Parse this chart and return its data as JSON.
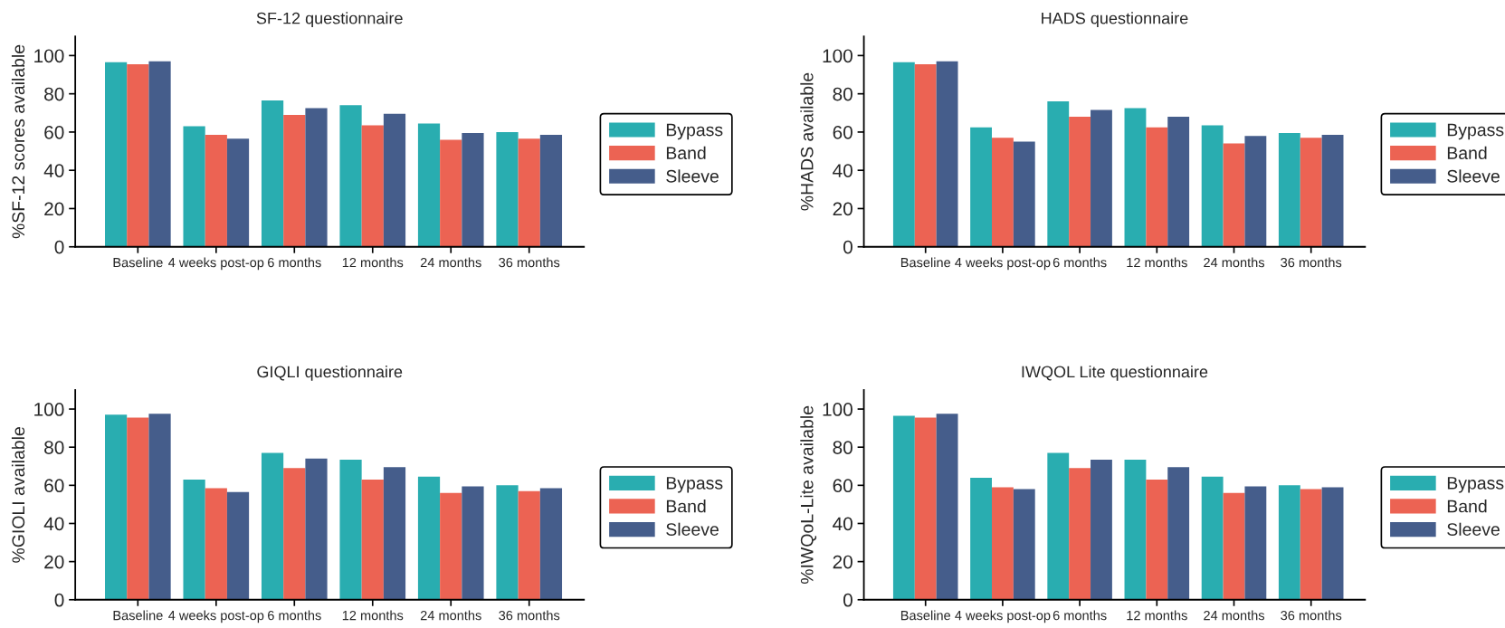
{
  "chart_data": [
    {
      "type": "bar",
      "title": "SF-12 questionnaire",
      "ylabel": "%SF-12 scores available",
      "categories": [
        "Baseline",
        "4 weeks post-op",
        "6 months",
        "12 months",
        "24 months",
        "36 months"
      ],
      "series": [
        {
          "name": "Bypass",
          "color": "#29adb0",
          "values": [
            96.5,
            63,
            76.5,
            74,
            64.5,
            60
          ]
        },
        {
          "name": "Band",
          "color": "#ec6353",
          "values": [
            95.5,
            58.5,
            69,
            63.5,
            56,
            56.5
          ]
        },
        {
          "name": "Sleeve",
          "color": "#455d8b",
          "values": [
            97,
            56.5,
            72.5,
            69.5,
            59.5,
            58.5
          ]
        }
      ],
      "ylim": [
        0,
        110
      ],
      "yticks": [
        0,
        20,
        40,
        60,
        80,
        100
      ],
      "legend": "right"
    },
    {
      "type": "bar",
      "title": "HADS questionnaire",
      "ylabel": "%HADS available",
      "categories": [
        "Baseline",
        "4 weeks post-op",
        "6 months",
        "12 months",
        "24 months",
        "36 months"
      ],
      "series": [
        {
          "name": "Bypass",
          "color": "#29adb0",
          "values": [
            96.5,
            62.5,
            76,
            72.5,
            63.5,
            59.5
          ]
        },
        {
          "name": "Band",
          "color": "#ec6353",
          "values": [
            95.5,
            57,
            68,
            62.5,
            54,
            57
          ]
        },
        {
          "name": "Sleeve",
          "color": "#455d8b",
          "values": [
            97,
            55,
            71.5,
            68,
            58,
            58.5
          ]
        }
      ],
      "ylim": [
        0,
        110
      ],
      "yticks": [
        0,
        20,
        40,
        60,
        80,
        100
      ],
      "legend": "right"
    },
    {
      "type": "bar",
      "title": "GIQLI questionnaire",
      "ylabel": "%GIOLI available",
      "categories": [
        "Baseline",
        "4 weeks post-op",
        "6 months",
        "12 months",
        "24 months",
        "36 months"
      ],
      "series": [
        {
          "name": "Bypass",
          "color": "#29adb0",
          "values": [
            97,
            63,
            77,
            73.5,
            64.5,
            60
          ]
        },
        {
          "name": "Band",
          "color": "#ec6353",
          "values": [
            95.5,
            58.5,
            69,
            63,
            56,
            57
          ]
        },
        {
          "name": "Sleeve",
          "color": "#455d8b",
          "values": [
            97.5,
            56.5,
            74,
            69.5,
            59.5,
            58.5
          ]
        }
      ],
      "ylim": [
        0,
        110
      ],
      "yticks": [
        0,
        20,
        40,
        60,
        80,
        100
      ],
      "legend": "right"
    },
    {
      "type": "bar",
      "title": "IWQOL Lite questionnaire",
      "ylabel": "%IWQoL-Lite available",
      "categories": [
        "Baseline",
        "4 weeks post-op",
        "6 months",
        "12 months",
        "24 months",
        "36 months"
      ],
      "series": [
        {
          "name": "Bypass",
          "color": "#29adb0",
          "values": [
            96.5,
            64,
            77,
            73.5,
            64.5,
            60
          ]
        },
        {
          "name": "Band",
          "color": "#ec6353",
          "values": [
            95.5,
            59,
            69,
            63,
            56,
            58
          ]
        },
        {
          "name": "Sleeve",
          "color": "#455d8b",
          "values": [
            97.5,
            58,
            73.5,
            69.5,
            59.5,
            59
          ]
        }
      ],
      "ylim": [
        0,
        110
      ],
      "yticks": [
        0,
        20,
        40,
        60,
        80,
        100
      ],
      "legend": "right"
    }
  ]
}
